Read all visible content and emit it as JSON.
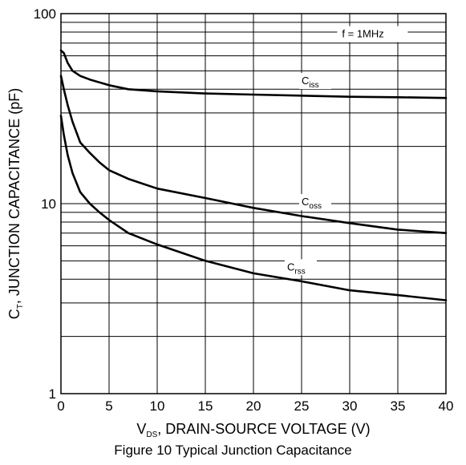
{
  "chart_data": {
    "type": "line",
    "x_axis": {
      "label_prefix": "V",
      "label_sub": "DS",
      "label_rest": ", DRAIN-SOURCE VOLTAGE (V)",
      "range": [
        0,
        40
      ],
      "ticks": [
        "0",
        "5",
        "10",
        "15",
        "20",
        "25",
        "30",
        "35",
        "40"
      ]
    },
    "y_axis": {
      "label_prefix": "C",
      "label_sub": "T",
      "label_rest": ", JUNCTION CAPACITANCE (pF)",
      "scale": "log",
      "range": [
        1,
        100
      ],
      "ticks": [
        "1",
        "10",
        "100"
      ]
    },
    "grid": true,
    "condition": "f = 1MHz",
    "series": [
      {
        "name_main": "C",
        "name_sub": "iss",
        "x": [
          0,
          0.3,
          0.7,
          1.2,
          2,
          3,
          5,
          7,
          10,
          15,
          20,
          25,
          30,
          35,
          40
        ],
        "y": [
          64,
          62,
          55,
          50,
          47,
          45,
          42,
          40,
          39,
          38,
          37.5,
          37,
          36.5,
          36.3,
          36
        ]
      },
      {
        "name_main": "C",
        "name_sub": "oss",
        "x": [
          0,
          0.3,
          0.7,
          1.2,
          2,
          3,
          4,
          5,
          7,
          10,
          15,
          20,
          25,
          30,
          35,
          40
        ],
        "y": [
          47,
          40,
          33,
          27,
          21,
          18.5,
          16.5,
          15,
          13.5,
          12,
          10.7,
          9.5,
          8.6,
          7.9,
          7.3,
          7
        ]
      },
      {
        "name_main": "C",
        "name_sub": "rss",
        "x": [
          0,
          0.3,
          0.7,
          1.2,
          2,
          3,
          4,
          5,
          7,
          10,
          15,
          20,
          25,
          30,
          35,
          40
        ],
        "y": [
          29,
          23,
          18,
          14.5,
          11.5,
          10,
          9,
          8.2,
          7,
          6.1,
          5,
          4.3,
          3.9,
          3.5,
          3.3,
          3.1
        ]
      }
    ],
    "caption": "Figure 10 Typical Junction Capacitance"
  }
}
